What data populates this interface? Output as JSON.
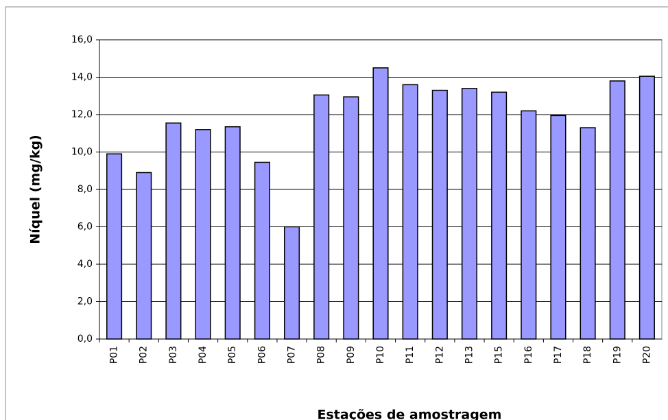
{
  "chart_data": {
    "type": "bar",
    "x_label": "Estações de amostragem",
    "y_label": "Níquel (mg/kg)",
    "categories": [
      "P01",
      "P02",
      "P03",
      "P04",
      "P05",
      "P06",
      "P07",
      "P08",
      "P09",
      "P10",
      "P11",
      "P12",
      "P13",
      "P15",
      "P16",
      "P17",
      "P18",
      "P19",
      "P20"
    ],
    "values": [
      9.9,
      8.9,
      11.55,
      11.2,
      11.35,
      9.45,
      6.0,
      13.05,
      12.95,
      14.5,
      13.6,
      13.3,
      13.4,
      13.2,
      12.2,
      11.95,
      11.3,
      13.8,
      14.05
    ],
    "color": "#9999ff",
    "ylim": [
      0,
      16
    ],
    "yticks": [
      {
        "value": 0,
        "label": "0,0"
      },
      {
        "value": 2,
        "label": "2,0"
      },
      {
        "value": 4,
        "label": "4,0"
      },
      {
        "value": 6,
        "label": "6,0"
      },
      {
        "value": 8,
        "label": "8,0"
      },
      {
        "value": 10,
        "label": "10,0"
      },
      {
        "value": 12,
        "label": "12,0"
      },
      {
        "value": 14,
        "label": "14,0"
      },
      {
        "value": 16,
        "label": "16,0"
      }
    ],
    "grid": true
  }
}
